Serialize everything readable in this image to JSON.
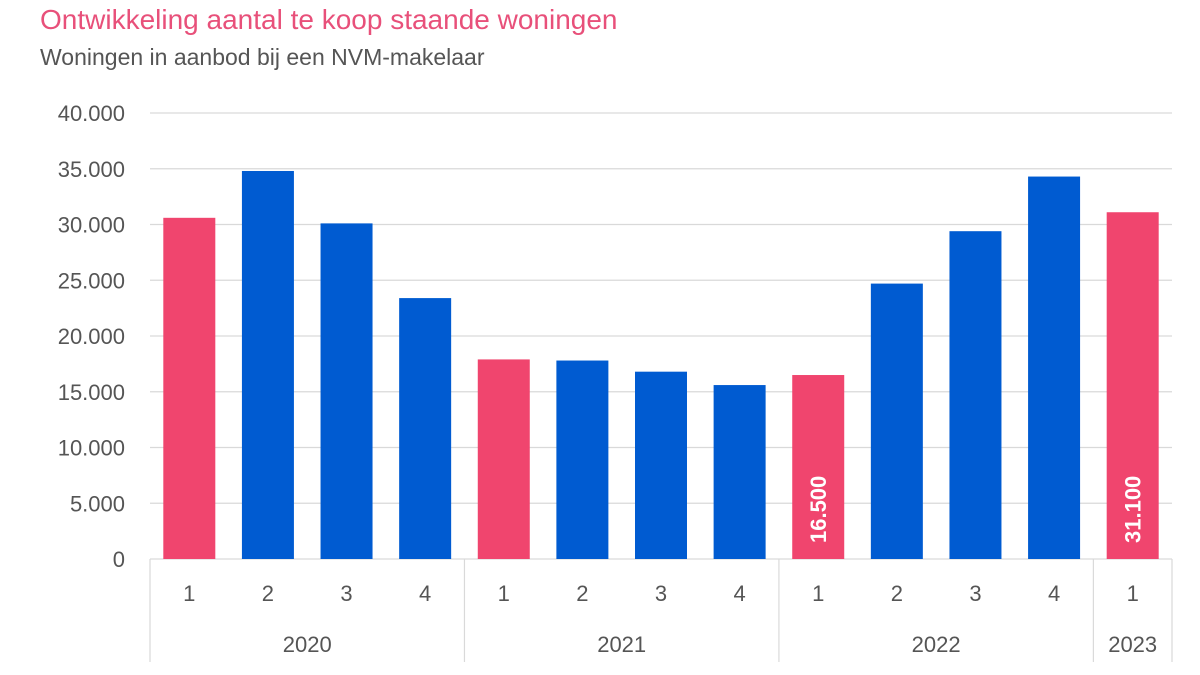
{
  "title": "Ontwikkeling aantal te koop staande woningen",
  "subtitle": "Woningen in aanbod bij een NVM-makelaar",
  "colors": {
    "highlight": "#f0456e",
    "regular": "#005bd1",
    "title": "#e8507a",
    "text": "#555555",
    "grid": "#d9d9d9"
  },
  "chart_data": {
    "type": "bar",
    "title": "Ontwikkeling aantal te koop staande woningen",
    "subtitle": "Woningen in aanbod bij een NVM-makelaar",
    "xlabel": "",
    "ylabel": "",
    "ylim": [
      0,
      40000
    ],
    "yticks": [
      0,
      5000,
      10000,
      15000,
      20000,
      25000,
      30000,
      35000,
      40000
    ],
    "ytick_labels": [
      "0",
      "5.000",
      "10.000",
      "15.000",
      "20.000",
      "25.000",
      "30.000",
      "35.000",
      "40.000"
    ],
    "grid": true,
    "legend": "none",
    "groups": [
      {
        "label": "2020",
        "quarters": [
          "1",
          "2",
          "3",
          "4"
        ]
      },
      {
        "label": "2021",
        "quarters": [
          "1",
          "2",
          "3",
          "4"
        ]
      },
      {
        "label": "2022",
        "quarters": [
          "1",
          "2",
          "3",
          "4"
        ]
      },
      {
        "label": "2023",
        "quarters": [
          "1"
        ]
      }
    ],
    "values": [
      30600,
      34800,
      30100,
      23400,
      17900,
      17800,
      16800,
      15600,
      16500,
      24700,
      29400,
      34300,
      31100
    ],
    "highlighted": [
      true,
      false,
      false,
      false,
      true,
      false,
      false,
      false,
      true,
      false,
      false,
      false,
      true
    ],
    "data_labels": [
      "",
      "",
      "",
      "",
      "",
      "",
      "",
      "",
      "16.500",
      "",
      "",
      "",
      "31.100"
    ]
  }
}
